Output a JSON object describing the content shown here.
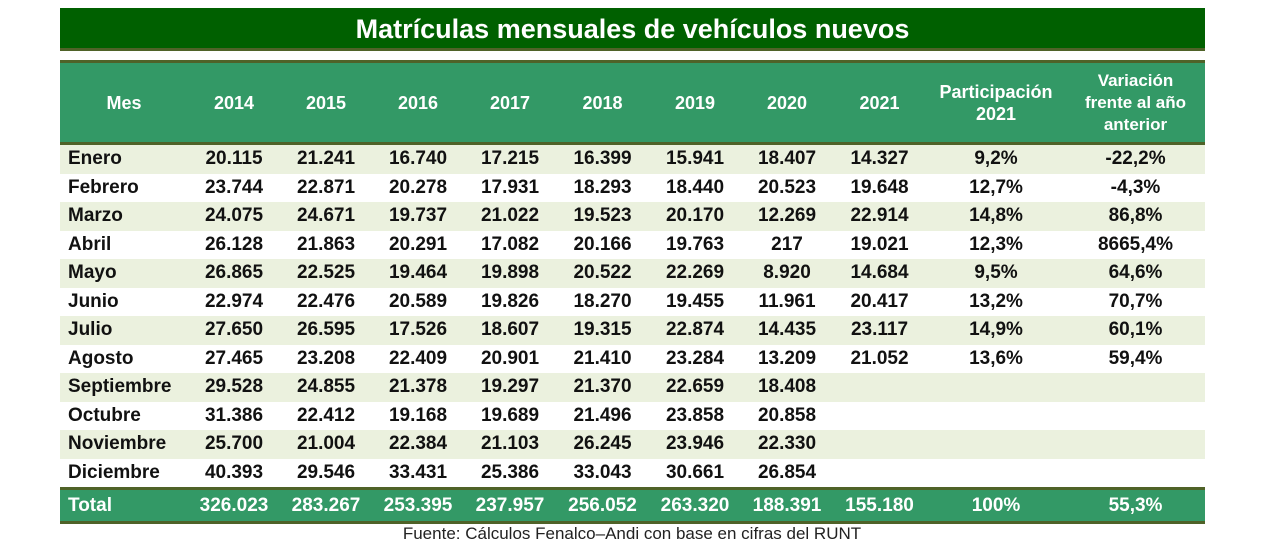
{
  "title": "Matrículas mensuales de vehículos nuevos",
  "headers": [
    "Mes",
    "2014",
    "2015",
    "2016",
    "2017",
    "2018",
    "2019",
    "2020",
    "2021",
    "Participación 2021",
    "Variación frente al año anterior"
  ],
  "rows": [
    [
      "Enero",
      "20.115",
      "21.241",
      "16.740",
      "17.215",
      "16.399",
      "15.941",
      "18.407",
      "14.327",
      "9,2%",
      "-22,2%"
    ],
    [
      "Febrero",
      "23.744",
      "22.871",
      "20.278",
      "17.931",
      "18.293",
      "18.440",
      "20.523",
      "19.648",
      "12,7%",
      "-4,3%"
    ],
    [
      "Marzo",
      "24.075",
      "24.671",
      "19.737",
      "21.022",
      "19.523",
      "20.170",
      "12.269",
      "22.914",
      "14,8%",
      "86,8%"
    ],
    [
      "Abril",
      "26.128",
      "21.863",
      "20.291",
      "17.082",
      "20.166",
      "19.763",
      "217",
      "19.021",
      "12,3%",
      "8665,4%"
    ],
    [
      "Mayo",
      "26.865",
      "22.525",
      "19.464",
      "19.898",
      "20.522",
      "22.269",
      "8.920",
      "14.684",
      "9,5%",
      "64,6%"
    ],
    [
      "Junio",
      "22.974",
      "22.476",
      "20.589",
      "19.826",
      "18.270",
      "19.455",
      "11.961",
      "20.417",
      "13,2%",
      "70,7%"
    ],
    [
      "Julio",
      "27.650",
      "26.595",
      "17.526",
      "18.607",
      "19.315",
      "22.874",
      "14.435",
      "23.117",
      "14,9%",
      "60,1%"
    ],
    [
      "Agosto",
      "27.465",
      "23.208",
      "22.409",
      "20.901",
      "21.410",
      "23.284",
      "13.209",
      "21.052",
      "13,6%",
      "59,4%"
    ],
    [
      "Septiembre",
      "29.528",
      "24.855",
      "21.378",
      "19.297",
      "21.370",
      "22.659",
      "18.408",
      "",
      "",
      ""
    ],
    [
      "Octubre",
      "31.386",
      "22.412",
      "19.168",
      "19.689",
      "21.496",
      "23.858",
      "20.858",
      "",
      "",
      ""
    ],
    [
      "Noviembre",
      "25.700",
      "21.004",
      "22.384",
      "21.103",
      "26.245",
      "23.946",
      "22.330",
      "",
      "",
      ""
    ],
    [
      "Diciembre",
      "40.393",
      "29.546",
      "33.431",
      "25.386",
      "33.043",
      "30.661",
      "26.854",
      "",
      "",
      ""
    ]
  ],
  "total": [
    "Total",
    "326.023",
    "283.267",
    "253.395",
    "237.957",
    "256.052",
    "263.320",
    "188.391",
    "155.180",
    "100%",
    "55,3%"
  ],
  "source": "Fuente: Cálculos Fenalco–Andi con base en cifras del RUNT",
  "colors": {
    "title_bg": "#006000",
    "header_bg": "#339966",
    "alt_row": "#ebf1de",
    "border": "#4f6228"
  }
}
